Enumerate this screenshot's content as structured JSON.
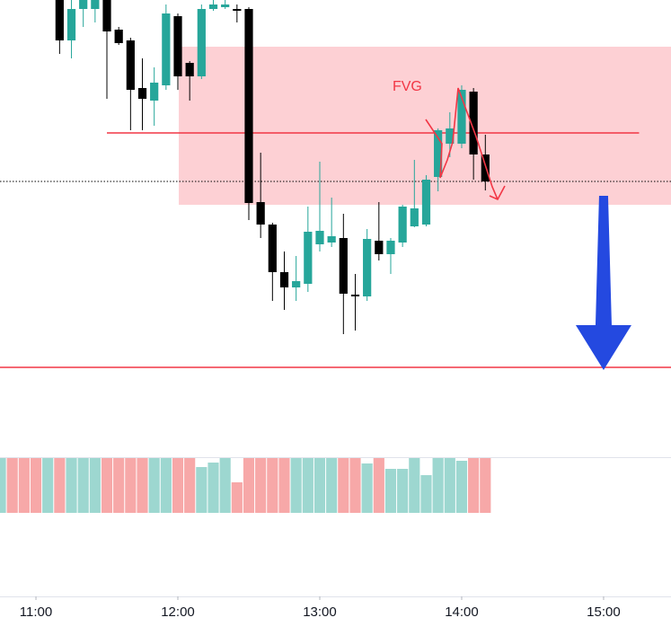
{
  "chart_data": {
    "type": "candlestick",
    "xlim": [
      644.8,
      928.5
    ],
    "xticks": [
      {
        "value": 660,
        "label": "11:00"
      },
      {
        "value": 720,
        "label": "12:00"
      },
      {
        "value": 780,
        "label": "13:00"
      },
      {
        "value": 840,
        "label": "14:00"
      },
      {
        "value": 900,
        "label": "15:00"
      }
    ],
    "ylim": [
      0,
      500
    ],
    "up_color": "#26a69a",
    "down_color": "#000000",
    "x": [
      670,
      675,
      680,
      685,
      690,
      695,
      700,
      705,
      710,
      715,
      720,
      725,
      730,
      735,
      740,
      745,
      750,
      755,
      760,
      765,
      770,
      775,
      780,
      785,
      790,
      795,
      800,
      805,
      810,
      815,
      820,
      825,
      830,
      835,
      840,
      845,
      850
    ],
    "open": [
      500,
      455,
      490,
      490,
      500,
      467,
      455,
      402,
      388,
      405,
      482,
      430,
      415,
      490,
      492,
      490,
      490,
      275,
      250,
      197,
      180,
      184,
      228,
      230,
      235,
      172,
      170,
      232,
      217,
      230,
      248,
      250,
      303,
      340,
      340,
      398,
      328
    ],
    "high": [
      505,
      500,
      505,
      505,
      505,
      470,
      458,
      435,
      425,
      495,
      485,
      432,
      495,
      500,
      500,
      495,
      492,
      330,
      252,
      220,
      215,
      270,
      320,
      280,
      262,
      195,
      245,
      275,
      235,
      272,
      322,
      305,
      357,
      375,
      405,
      402,
      350
    ],
    "low": [
      440,
      435,
      470,
      475,
      390,
      450,
      355,
      355,
      360,
      400,
      400,
      388,
      412,
      488,
      490,
      475,
      255,
      235,
      165,
      155,
      165,
      175,
      220,
      225,
      128,
      132,
      165,
      210,
      195,
      225,
      247,
      248,
      287,
      325,
      335,
      300,
      288
    ],
    "close": [
      455,
      490,
      500,
      500,
      465,
      452,
      400,
      390,
      408,
      485,
      415,
      415,
      490,
      495,
      495,
      488,
      274,
      250,
      197,
      180,
      187,
      242,
      243,
      237,
      173,
      170,
      234,
      217,
      232,
      270,
      268,
      300,
      355,
      357,
      400,
      328,
      298
    ],
    "volume": {
      "ylim": [
        0,
        61
      ],
      "x": [
        645,
        650,
        655,
        660,
        665,
        670,
        675,
        680,
        685,
        690,
        695,
        700,
        705,
        710,
        715,
        720,
        725,
        730,
        735,
        740,
        745,
        750,
        755,
        760,
        765,
        770,
        775,
        780,
        785,
        790,
        795,
        800,
        805,
        810,
        815,
        820,
        825,
        830,
        835,
        840,
        845,
        850
      ],
      "values": [
        61,
        61,
        61,
        61,
        61,
        61,
        61,
        61,
        61,
        61,
        61,
        61,
        61,
        61,
        61,
        61,
        61,
        51,
        56,
        61,
        34,
        61,
        61,
        61,
        61,
        61,
        61,
        61,
        61,
        61,
        61,
        55,
        61,
        49,
        49,
        61,
        42,
        61,
        61,
        58,
        61,
        61
      ],
      "colors": [
        "#9dd7d0",
        "#f7a8a8",
        "#f7a8a8",
        "#f7a8a8",
        "#9dd7d0",
        "#f7a8a8",
        "#9dd7d0",
        "#9dd7d0",
        "#9dd7d0",
        "#f7a8a8",
        "#f7a8a8",
        "#f7a8a8",
        "#f7a8a8",
        "#9dd7d0",
        "#9dd7d0",
        "#f7a8a8",
        "#f7a8a8",
        "#9dd7d0",
        "#9dd7d0",
        "#9dd7d0",
        "#f7a8a8",
        "#f7a8a8",
        "#f7a8a8",
        "#f7a8a8",
        "#f7a8a8",
        "#9dd7d0",
        "#9dd7d0",
        "#9dd7d0",
        "#9dd7d0",
        "#f7a8a8",
        "#f7a8a8",
        "#9dd7d0",
        "#f7a8a8",
        "#9dd7d0",
        "#9dd7d0",
        "#9dd7d0",
        "#9dd7d0",
        "#9dd7d0",
        "#9dd7d0",
        "#9dd7d0",
        "#f7a8a8",
        "#f7a8a8"
      ]
    },
    "zone": {
      "x": [
        720.4,
        928.5
      ],
      "y": [
        272,
        448
      ],
      "color": "#fdd0d4"
    },
    "levels": [
      {
        "value": 352,
        "x": [
          690,
          915
        ],
        "color": "#f23645"
      },
      {
        "value": 298,
        "x": [
          644.8,
          928.5
        ],
        "color": "#000000",
        "dash": true
      },
      {
        "value": 91,
        "x": [
          644.8,
          928.5
        ],
        "color": "#f23645"
      }
    ],
    "arrow": {
      "x": 900,
      "from": 282,
      "to": 88,
      "color": "#2449e0"
    },
    "annotation": {
      "text": "FVG",
      "x": 817,
      "value": 403,
      "color": "#f23645"
    }
  }
}
